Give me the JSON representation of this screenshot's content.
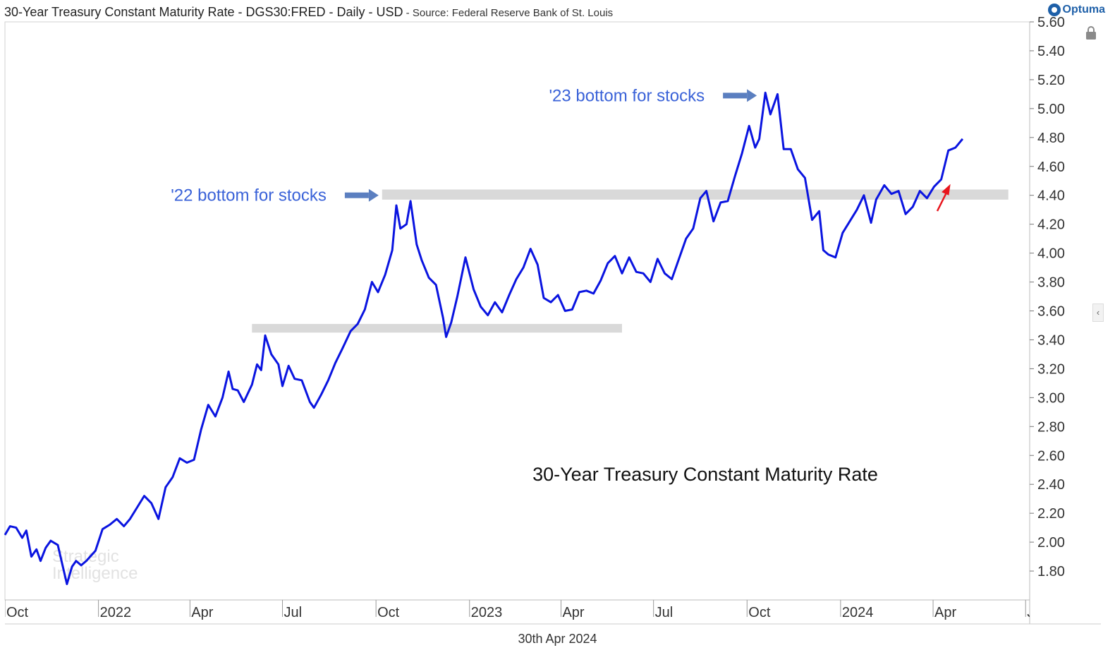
{
  "header": {
    "title": "30-Year Treasury Constant Maturity Rate - DGS30:FRED - Daily - USD",
    "source": " - Source: Federal Reserve Bank of St. Louis",
    "brand": "Optuma"
  },
  "footer": {
    "date": "30th Apr 2024"
  },
  "colors": {
    "line": "#0a14e0",
    "annotation_text": "#3a62d8",
    "band": "#d9d9d9",
    "red_arrow": "#e8141c",
    "arrow": "#5b7fc0"
  },
  "icons": {
    "lock": "lock-icon",
    "collapse": "chevron-left-icon",
    "brand": "optuma-logo-icon"
  },
  "watermark": {
    "line1": "Strategic",
    "line2": "Intelligence"
  },
  "chart_data": {
    "type": "line",
    "title": "30-Year Treasury Constant Maturity Rate",
    "ylim": [
      1.6,
      5.6
    ],
    "yticks": [
      1.8,
      2.0,
      2.2,
      2.4,
      2.6,
      2.8,
      3.0,
      3.2,
      3.4,
      3.6,
      3.8,
      4.0,
      4.2,
      4.4,
      4.6,
      4.8,
      5.0,
      5.2,
      5.4,
      5.6
    ],
    "ytick_labels": [
      "1.80",
      "2.00",
      "2.20",
      "2.40",
      "2.60",
      "2.80",
      "3.00",
      "3.20",
      "3.40",
      "3.60",
      "3.80",
      "4.00",
      "4.20",
      "4.40",
      "4.60",
      "4.80",
      "5.00",
      "5.20",
      "5.40",
      "5.60"
    ],
    "x_range": [
      "2021-10-01",
      "2024-07-05"
    ],
    "xticks": [
      {
        "date": "2021-10-01",
        "label": "Oct"
      },
      {
        "date": "2022-01-01",
        "label": "2022"
      },
      {
        "date": "2022-04-01",
        "label": "Apr"
      },
      {
        "date": "2022-07-01",
        "label": "Jul"
      },
      {
        "date": "2022-10-01",
        "label": "Oct"
      },
      {
        "date": "2023-01-01",
        "label": "2023"
      },
      {
        "date": "2023-04-01",
        "label": "Apr"
      },
      {
        "date": "2023-07-01",
        "label": "Jul"
      },
      {
        "date": "2023-10-01",
        "label": "Oct"
      },
      {
        "date": "2024-01-01",
        "label": "2024"
      },
      {
        "date": "2024-04-01",
        "label": "Apr"
      },
      {
        "date": "2024-07-01",
        "label": "Jul"
      }
    ],
    "series": [
      {
        "points": [
          [
            "2021-10-01",
            2.05
          ],
          [
            "2021-10-06",
            2.11
          ],
          [
            "2021-10-12",
            2.1
          ],
          [
            "2021-10-18",
            2.03
          ],
          [
            "2021-10-22",
            2.08
          ],
          [
            "2021-10-27",
            1.9
          ],
          [
            "2021-11-01",
            1.95
          ],
          [
            "2021-11-05",
            1.87
          ],
          [
            "2021-11-10",
            1.96
          ],
          [
            "2021-11-15",
            2.01
          ],
          [
            "2021-11-22",
            1.98
          ],
          [
            "2021-11-26",
            1.86
          ],
          [
            "2021-12-01",
            1.71
          ],
          [
            "2021-12-06",
            1.83
          ],
          [
            "2021-12-10",
            1.87
          ],
          [
            "2021-12-15",
            1.84
          ],
          [
            "2021-12-20",
            1.87
          ],
          [
            "2021-12-29",
            1.94
          ],
          [
            "2022-01-05",
            2.09
          ],
          [
            "2022-01-12",
            2.12
          ],
          [
            "2022-01-19",
            2.16
          ],
          [
            "2022-01-26",
            2.11
          ],
          [
            "2022-02-01",
            2.16
          ],
          [
            "2022-02-08",
            2.24
          ],
          [
            "2022-02-15",
            2.32
          ],
          [
            "2022-02-22",
            2.27
          ],
          [
            "2022-03-01",
            2.16
          ],
          [
            "2022-03-08",
            2.38
          ],
          [
            "2022-03-15",
            2.45
          ],
          [
            "2022-03-22",
            2.58
          ],
          [
            "2022-03-29",
            2.55
          ],
          [
            "2022-04-05",
            2.57
          ],
          [
            "2022-04-12",
            2.78
          ],
          [
            "2022-04-19",
            2.95
          ],
          [
            "2022-04-26",
            2.87
          ],
          [
            "2022-05-03",
            3.0
          ],
          [
            "2022-05-09",
            3.18
          ],
          [
            "2022-05-13",
            3.06
          ],
          [
            "2022-05-18",
            3.05
          ],
          [
            "2022-05-24",
            2.97
          ],
          [
            "2022-06-01",
            3.09
          ],
          [
            "2022-06-06",
            3.23
          ],
          [
            "2022-06-10",
            3.19
          ],
          [
            "2022-06-14",
            3.43
          ],
          [
            "2022-06-20",
            3.3
          ],
          [
            "2022-06-27",
            3.23
          ],
          [
            "2022-07-01",
            3.08
          ],
          [
            "2022-07-07",
            3.22
          ],
          [
            "2022-07-13",
            3.13
          ],
          [
            "2022-07-20",
            3.12
          ],
          [
            "2022-07-28",
            2.97
          ],
          [
            "2022-08-01",
            2.93
          ],
          [
            "2022-08-08",
            3.02
          ],
          [
            "2022-08-15",
            3.12
          ],
          [
            "2022-08-22",
            3.24
          ],
          [
            "2022-08-29",
            3.34
          ],
          [
            "2022-09-06",
            3.46
          ],
          [
            "2022-09-13",
            3.51
          ],
          [
            "2022-09-20",
            3.61
          ],
          [
            "2022-09-27",
            3.8
          ],
          [
            "2022-10-03",
            3.73
          ],
          [
            "2022-10-10",
            3.85
          ],
          [
            "2022-10-17",
            4.02
          ],
          [
            "2022-10-21",
            4.33
          ],
          [
            "2022-10-25",
            4.17
          ],
          [
            "2022-10-31",
            4.2
          ],
          [
            "2022-11-04",
            4.36
          ],
          [
            "2022-11-10",
            4.06
          ],
          [
            "2022-11-15",
            3.95
          ],
          [
            "2022-11-22",
            3.83
          ],
          [
            "2022-11-29",
            3.78
          ],
          [
            "2022-12-06",
            3.55
          ],
          [
            "2022-12-09",
            3.42
          ],
          [
            "2022-12-14",
            3.52
          ],
          [
            "2022-12-20",
            3.7
          ],
          [
            "2022-12-28",
            3.97
          ],
          [
            "2023-01-05",
            3.75
          ],
          [
            "2023-01-12",
            3.63
          ],
          [
            "2023-01-19",
            3.57
          ],
          [
            "2023-01-26",
            3.66
          ],
          [
            "2023-02-02",
            3.59
          ],
          [
            "2023-02-09",
            3.71
          ],
          [
            "2023-02-16",
            3.82
          ],
          [
            "2023-02-23",
            3.9
          ],
          [
            "2023-03-02",
            4.03
          ],
          [
            "2023-03-09",
            3.92
          ],
          [
            "2023-03-15",
            3.69
          ],
          [
            "2023-03-22",
            3.66
          ],
          [
            "2023-03-29",
            3.71
          ],
          [
            "2023-04-05",
            3.6
          ],
          [
            "2023-04-12",
            3.61
          ],
          [
            "2023-04-19",
            3.73
          ],
          [
            "2023-04-26",
            3.74
          ],
          [
            "2023-05-03",
            3.72
          ],
          [
            "2023-05-10",
            3.81
          ],
          [
            "2023-05-17",
            3.93
          ],
          [
            "2023-05-24",
            3.98
          ],
          [
            "2023-05-31",
            3.86
          ],
          [
            "2023-06-07",
            3.97
          ],
          [
            "2023-06-14",
            3.87
          ],
          [
            "2023-06-21",
            3.86
          ],
          [
            "2023-06-28",
            3.8
          ],
          [
            "2023-07-05",
            3.96
          ],
          [
            "2023-07-12",
            3.86
          ],
          [
            "2023-07-19",
            3.82
          ],
          [
            "2023-07-26",
            3.96
          ],
          [
            "2023-08-02",
            4.1
          ],
          [
            "2023-08-09",
            4.17
          ],
          [
            "2023-08-16",
            4.38
          ],
          [
            "2023-08-22",
            4.43
          ],
          [
            "2023-08-29",
            4.22
          ],
          [
            "2023-09-05",
            4.35
          ],
          [
            "2023-09-12",
            4.36
          ],
          [
            "2023-09-19",
            4.53
          ],
          [
            "2023-09-26",
            4.69
          ],
          [
            "2023-10-03",
            4.88
          ],
          [
            "2023-10-09",
            4.73
          ],
          [
            "2023-10-13",
            4.79
          ],
          [
            "2023-10-19",
            5.11
          ],
          [
            "2023-10-24",
            4.96
          ],
          [
            "2023-10-31",
            5.1
          ],
          [
            "2023-11-06",
            4.72
          ],
          [
            "2023-11-13",
            4.72
          ],
          [
            "2023-11-20",
            4.58
          ],
          [
            "2023-11-27",
            4.52
          ],
          [
            "2023-12-04",
            4.23
          ],
          [
            "2023-12-11",
            4.29
          ],
          [
            "2023-12-15",
            4.02
          ],
          [
            "2023-12-20",
            3.99
          ],
          [
            "2023-12-27",
            3.97
          ],
          [
            "2024-01-03",
            4.14
          ],
          [
            "2024-01-10",
            4.22
          ],
          [
            "2024-01-17",
            4.3
          ],
          [
            "2024-01-24",
            4.4
          ],
          [
            "2024-01-31",
            4.21
          ],
          [
            "2024-02-05",
            4.37
          ],
          [
            "2024-02-13",
            4.47
          ],
          [
            "2024-02-20",
            4.41
          ],
          [
            "2024-02-27",
            4.43
          ],
          [
            "2024-03-05",
            4.27
          ],
          [
            "2024-03-12",
            4.32
          ],
          [
            "2024-03-19",
            4.43
          ],
          [
            "2024-03-26",
            4.38
          ],
          [
            "2024-04-02",
            4.46
          ],
          [
            "2024-04-09",
            4.51
          ],
          [
            "2024-04-16",
            4.71
          ],
          [
            "2024-04-23",
            4.73
          ],
          [
            "2024-04-30",
            4.79
          ]
        ]
      }
    ],
    "bands": [
      {
        "from": "2022-06-01",
        "to": "2023-05-31",
        "y_low": 3.45,
        "y_high": 3.51
      },
      {
        "from": "2022-10-07",
        "to": "2024-06-14",
        "y_low": 4.37,
        "y_high": 4.44
      }
    ],
    "annotations": [
      {
        "text": "'22 bottom for stocks",
        "arrow_to": [
          "2022-10-05",
          4.4
        ]
      },
      {
        "text": "'23 bottom for stocks",
        "arrow_to": [
          "2023-10-12",
          5.09
        ]
      }
    ]
  }
}
